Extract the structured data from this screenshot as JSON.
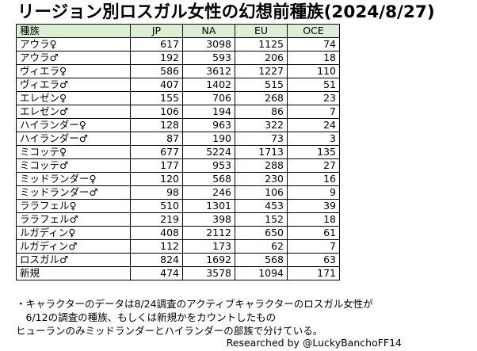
{
  "title": "リージョン別ロスガル女性の幻想前種族(2024/8/27)",
  "table": {
    "headers": [
      "種族",
      "JP",
      "NA",
      "EU",
      "OCE"
    ],
    "rows": [
      {
        "race": "アウラ♀",
        "jp": "617",
        "na": "3098",
        "eu": "1125",
        "oce": "74"
      },
      {
        "race": "アウラ♂",
        "jp": "192",
        "na": "593",
        "eu": "206",
        "oce": "18"
      },
      {
        "race": "ヴィエラ♀",
        "jp": "586",
        "na": "3612",
        "eu": "1227",
        "oce": "110"
      },
      {
        "race": "ヴィエラ♂",
        "jp": "407",
        "na": "1402",
        "eu": "515",
        "oce": "51"
      },
      {
        "race": "エレゼン♀",
        "jp": "155",
        "na": "706",
        "eu": "268",
        "oce": "23"
      },
      {
        "race": "エレゼン♂",
        "jp": "106",
        "na": "194",
        "eu": "86",
        "oce": "7"
      },
      {
        "race": "ハイランダー♀",
        "jp": "128",
        "na": "963",
        "eu": "322",
        "oce": "24"
      },
      {
        "race": "ハイランダー♂",
        "jp": "87",
        "na": "190",
        "eu": "73",
        "oce": "3"
      },
      {
        "race": "ミコッテ♀",
        "jp": "677",
        "na": "5224",
        "eu": "1713",
        "oce": "135"
      },
      {
        "race": "ミコッテ♂",
        "jp": "177",
        "na": "953",
        "eu": "288",
        "oce": "27"
      },
      {
        "race": "ミッドランダー♀",
        "jp": "120",
        "na": "568",
        "eu": "230",
        "oce": "16"
      },
      {
        "race": "ミッドランダー♂",
        "jp": "98",
        "na": "246",
        "eu": "106",
        "oce": "9"
      },
      {
        "race": "ララフェル♀",
        "jp": "510",
        "na": "1301",
        "eu": "453",
        "oce": "39"
      },
      {
        "race": "ララフェル♂",
        "jp": "219",
        "na": "398",
        "eu": "152",
        "oce": "18"
      },
      {
        "race": "ルガディン♀",
        "jp": "408",
        "na": "2112",
        "eu": "650",
        "oce": "61"
      },
      {
        "race": "ルガディン♂",
        "jp": "112",
        "na": "173",
        "eu": "62",
        "oce": "7"
      },
      {
        "race": "ロスガル♂",
        "jp": "824",
        "na": "1692",
        "eu": "568",
        "oce": "63"
      },
      {
        "race": "新規",
        "jp": "474",
        "na": "3578",
        "eu": "1094",
        "oce": "171"
      }
    ]
  },
  "notes": [
    "・キャラクターのデータは8/24調査のアクティブキャラクターのロスガル女性が",
    "　6/12の調査の種族、もしくは新規かをカウントしたもの",
    "ヒューランのみミッドランダーとハイランダーの部族で分けている。"
  ],
  "credit": "Researched by @LuckyBanchoFF14",
  "colors": {
    "header_bg": "#d9f0d3",
    "border": "#000000"
  }
}
